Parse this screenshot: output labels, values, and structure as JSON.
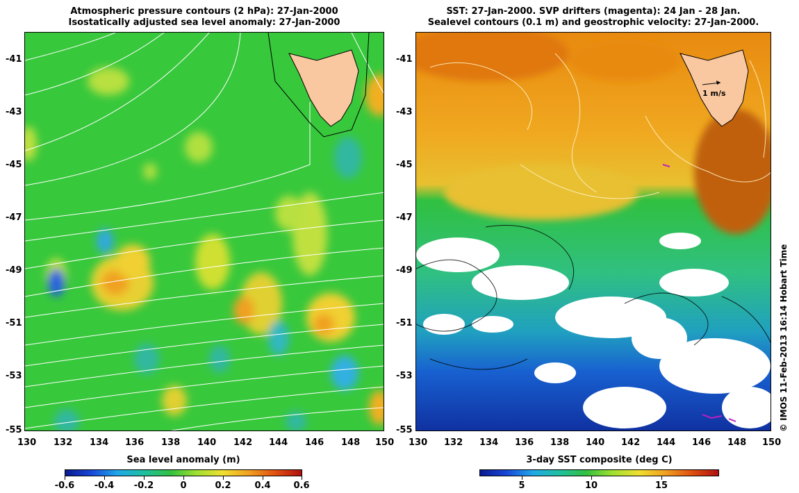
{
  "left_panel": {
    "title_line1": "Atmospheric pressure contours (2 hPa): 27-Jan-2000",
    "title_line2": "Isostatically adjusted sea level anomaly: 27-Jan-2000",
    "colorbar_title": "Sea level anomaly (m)",
    "colorbar_ticks": [
      "-0.6",
      "-0.4",
      "-0.2",
      "0",
      "0.2",
      "0.4",
      "0.6"
    ],
    "colorbar_range": [
      -0.6,
      0.6
    ]
  },
  "right_panel": {
    "title_line1": "SST: 27-Jan-2000. SVP drifters (magenta): 24 Jan - 28 Jan.",
    "title_line2": "Sealevel contours (0.1 m) and geostrophic velocity: 27-Jan-2000.",
    "colorbar_title": "3-day SST composite (deg C)",
    "colorbar_ticks": [
      "5",
      "10",
      "15"
    ],
    "colorbar_range": [
      2,
      19
    ],
    "velocity_scale_label": "1 m/s"
  },
  "axes": {
    "lat_ticks": [
      "-41",
      "-43",
      "-45",
      "-47",
      "-49",
      "-51",
      "-53",
      "-55"
    ],
    "lat_range": [
      -40,
      -55
    ],
    "lon_ticks": [
      "130",
      "132",
      "134",
      "136",
      "138",
      "140",
      "142",
      "144",
      "146",
      "148",
      "150"
    ],
    "lon_range": [
      130,
      150
    ]
  },
  "credit": "© IMOS 11-Feb-2013 16:14 Hobart Time",
  "colors": {
    "land": "#f9c8a0",
    "ocean_green": "#2fc83c",
    "warm_orange": "#e8a020",
    "cold_blue": "#1840c0",
    "contour_white": "#ffffff",
    "drifter_magenta": "#c020c0"
  }
}
